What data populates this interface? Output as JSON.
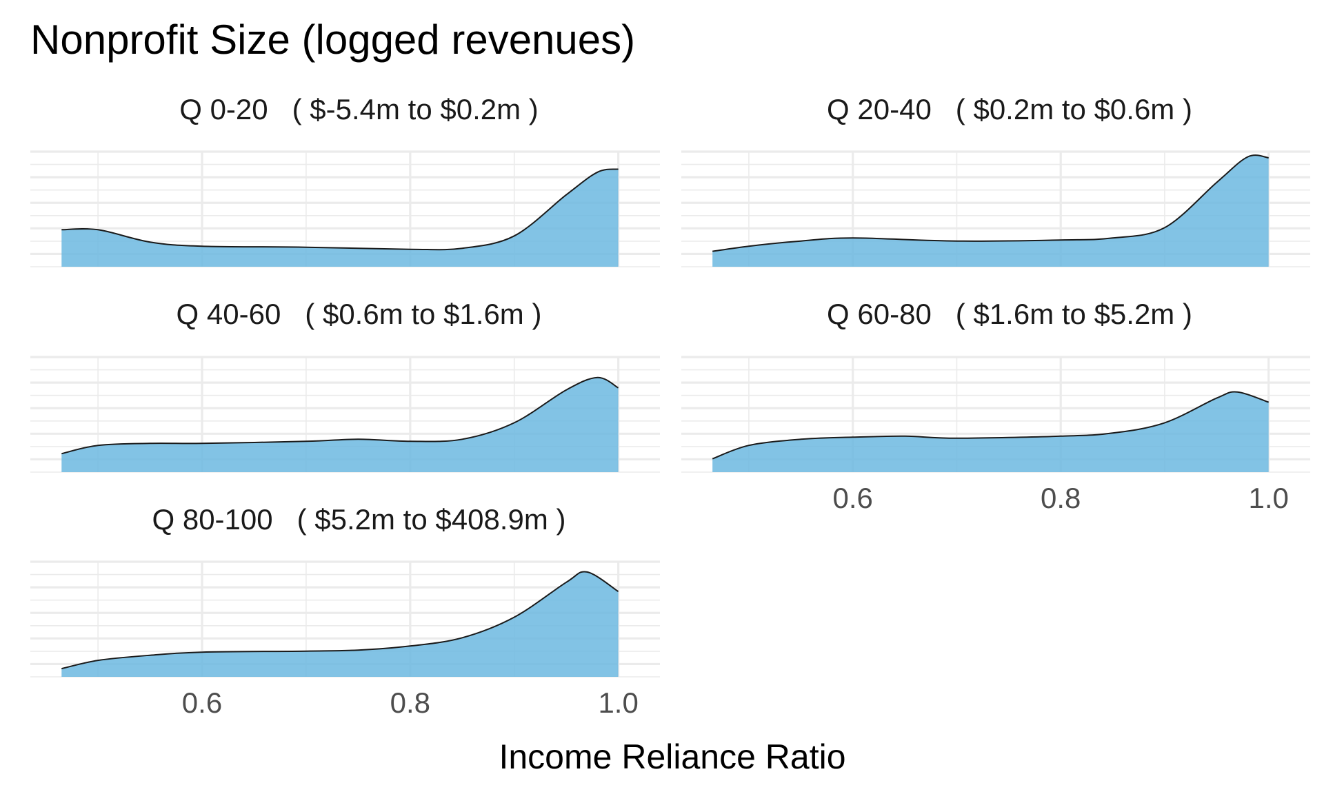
{
  "chart_data": {
    "type": "area",
    "title": "Nonprofit Size (logged revenues)",
    "xlabel": "Income Reliance Ratio",
    "ylabel": "",
    "xlim": [
      0.465,
      1.0
    ],
    "x_ticks": [
      0.6,
      0.8,
      1.0
    ],
    "x_tick_labels": [
      "0.6",
      "0.8",
      "1.0"
    ],
    "grid": true,
    "y_axis_labels_shown": false,
    "fill_color": "#6CB8E0",
    "line_color": "#1a1a1a",
    "panels": [
      {
        "label": "Q 0-20   ( $-5.4m to $0.2m )",
        "x": [
          0.465,
          0.5,
          0.55,
          0.6,
          0.7,
          0.8,
          0.85,
          0.9,
          0.95,
          0.98,
          1.0
        ],
        "y": [
          0.36,
          0.36,
          0.24,
          0.2,
          0.19,
          0.17,
          0.18,
          0.3,
          0.7,
          0.92,
          0.95
        ]
      },
      {
        "label": "Q 20-40   ( $0.2m to $0.6m )",
        "x": [
          0.465,
          0.5,
          0.55,
          0.6,
          0.7,
          0.8,
          0.85,
          0.9,
          0.95,
          0.98,
          1.0
        ],
        "y": [
          0.15,
          0.2,
          0.25,
          0.28,
          0.25,
          0.26,
          0.28,
          0.38,
          0.82,
          1.07,
          1.06
        ]
      },
      {
        "label": "Q 40-60   ( $0.6m to $1.6m )",
        "x": [
          0.465,
          0.5,
          0.55,
          0.6,
          0.7,
          0.75,
          0.8,
          0.85,
          0.9,
          0.95,
          0.98,
          1.0
        ],
        "y": [
          0.18,
          0.26,
          0.28,
          0.28,
          0.3,
          0.32,
          0.3,
          0.32,
          0.48,
          0.8,
          0.92,
          0.82
        ]
      },
      {
        "label": "Q 60-80   ( $1.6m to $5.2m )",
        "x": [
          0.465,
          0.5,
          0.55,
          0.6,
          0.65,
          0.7,
          0.8,
          0.85,
          0.9,
          0.95,
          0.97,
          1.0
        ],
        "y": [
          0.13,
          0.26,
          0.32,
          0.34,
          0.35,
          0.33,
          0.35,
          0.38,
          0.48,
          0.72,
          0.78,
          0.68
        ]
      },
      {
        "label": "Q 80-100   ( $5.2m to $408.9m )",
        "x": [
          0.465,
          0.5,
          0.55,
          0.6,
          0.7,
          0.75,
          0.8,
          0.85,
          0.9,
          0.95,
          0.97,
          1.0
        ],
        "y": [
          0.08,
          0.16,
          0.21,
          0.24,
          0.25,
          0.26,
          0.3,
          0.38,
          0.58,
          0.92,
          1.02,
          0.83
        ]
      }
    ]
  }
}
